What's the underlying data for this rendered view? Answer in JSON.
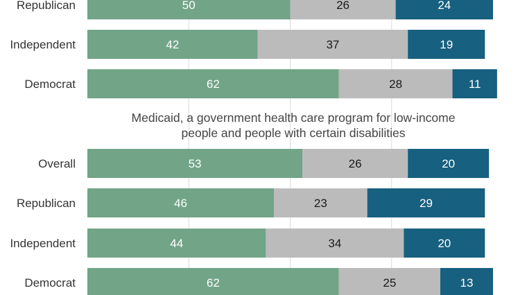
{
  "chart_data": {
    "type": "bar",
    "orientation": "horizontal",
    "stacked": true,
    "xlim": [
      0,
      100
    ],
    "grid": true,
    "series": [
      {
        "name": "",
        "color": "#72a488",
        "text_color": "#ffffff"
      },
      {
        "name": "",
        "color": "#bbbbbb",
        "text_color": "#1a1a1a"
      },
      {
        "name": "",
        "color": "#17607f",
        "text_color": "#ffffff"
      }
    ],
    "groups": [
      {
        "title": "",
        "rows": [
          {
            "label": "Republican",
            "values": [
              50,
              26,
              24
            ]
          },
          {
            "label": "Independent",
            "values": [
              42,
              37,
              19
            ]
          },
          {
            "label": "Democrat",
            "values": [
              62,
              28,
              11
            ]
          }
        ]
      },
      {
        "title_lines": [
          "Medicaid, a government health care program for low-income",
          "people and people with certain disabilities"
        ],
        "rows": [
          {
            "label": "Overall",
            "values": [
              53,
              26,
              20
            ]
          },
          {
            "label": "Republican",
            "values": [
              46,
              23,
              29
            ]
          },
          {
            "label": "Independent",
            "values": [
              44,
              34,
              20
            ]
          },
          {
            "label": "Democrat",
            "values": [
              62,
              25,
              13
            ]
          }
        ]
      }
    ]
  }
}
